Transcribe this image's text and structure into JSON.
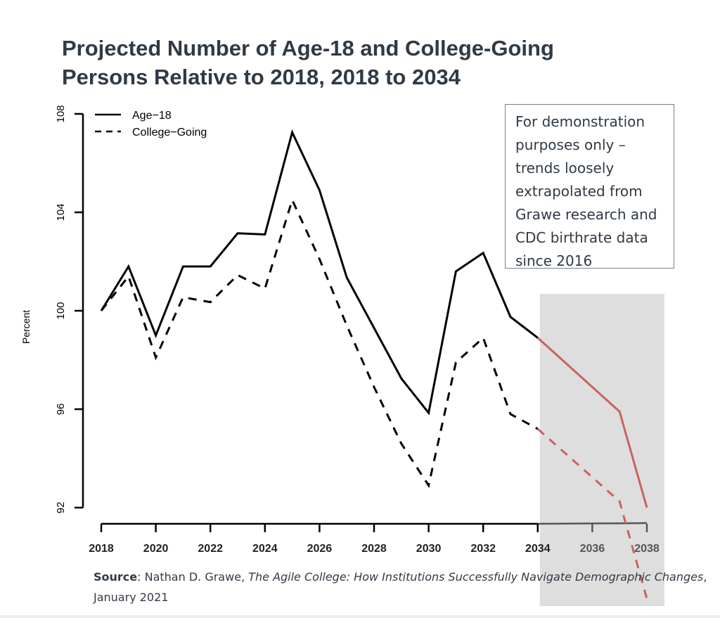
{
  "title_lines": [
    "Projected Number of Age-18 and College-Going",
    "Persons Relative to 2018, 2018 to 2034"
  ],
  "note": "For demonstration purposes only – trends loosely extrapolated from Grawe research and CDC birthrate data since 2016",
  "source": {
    "label": "Source",
    "text_plain_1": ": Nathan D. Grawe, ",
    "text_italic": "The Agile College: How Institutions Successfully Navigate Demographic Changes",
    "text_plain_2": ", January 2021"
  },
  "colors": {
    "historical": "#000000",
    "projection": "#c8645f",
    "shade": "#dedede",
    "title": "#2f3a45"
  },
  "chart_data": {
    "type": "line",
    "title": "Projected Number of Age-18 and College-Going Persons Relative to 2018, 2018 to 2034",
    "xlabel": "",
    "ylabel": "Percent",
    "xlim": [
      2018,
      2038
    ],
    "ylim": [
      92,
      108
    ],
    "xticks": [
      "2018",
      "2020",
      "2022",
      "2024",
      "2026",
      "2028",
      "2030",
      "2032",
      "2034",
      "2036",
      "2038"
    ],
    "yticks": [
      "92",
      "96",
      "100",
      "104",
      "108"
    ],
    "grid": false,
    "legend": "top-left",
    "projection_start": 2034,
    "shaded_region": [
      2034,
      2038
    ],
    "x": [
      2018,
      2019,
      2020,
      2021,
      2022,
      2023,
      2024,
      2025,
      2026,
      2027,
      2028,
      2029,
      2030,
      2031,
      2032,
      2033,
      2034,
      2037,
      2038
    ],
    "series": [
      {
        "name": "Age−18",
        "style": "solid",
        "values": [
          100,
          101.8,
          99.0,
          101.8,
          101.8,
          103.15,
          103.1,
          107.25,
          104.9,
          101.35,
          99.3,
          97.25,
          95.85,
          101.6,
          102.35,
          99.75,
          98.9,
          95.9,
          92.0
        ]
      },
      {
        "name": "College−Going",
        "style": "dashed",
        "values": [
          100,
          101.4,
          98.1,
          100.55,
          100.35,
          101.45,
          100.9,
          104.5,
          102.1,
          99.4,
          96.9,
          94.6,
          92.9,
          97.9,
          98.9,
          95.8,
          95.2,
          92.25,
          88.3
        ]
      }
    ]
  }
}
